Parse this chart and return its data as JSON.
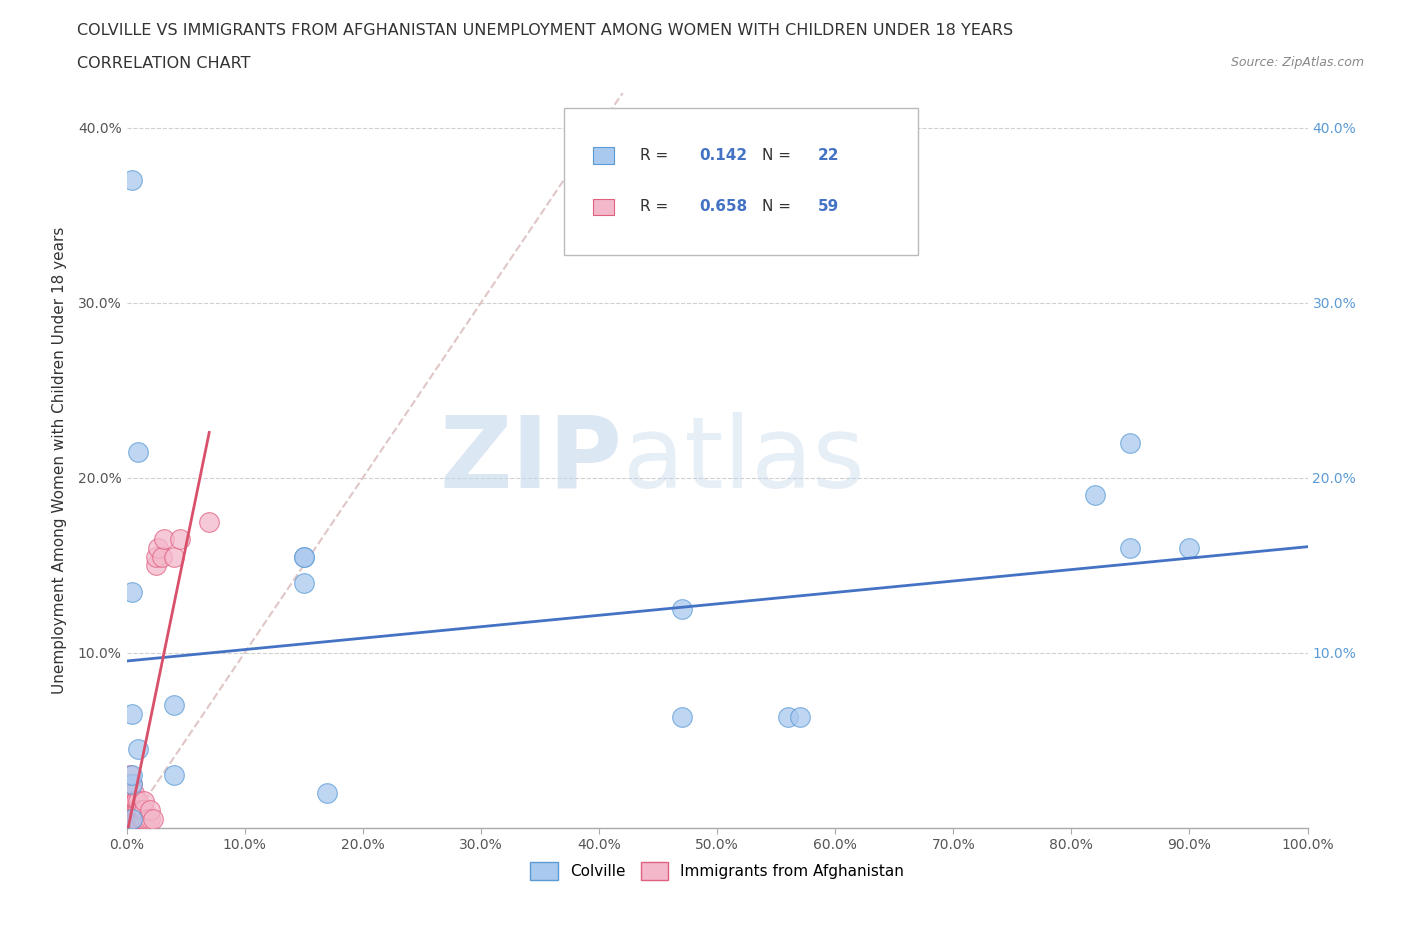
{
  "title_line1": "COLVILLE VS IMMIGRANTS FROM AFGHANISTAN UNEMPLOYMENT AMONG WOMEN WITH CHILDREN UNDER 18 YEARS",
  "title_line2": "CORRELATION CHART",
  "source_text": "Source: ZipAtlas.com",
  "ylabel": "Unemployment Among Women with Children Under 18 years",
  "xlim": [
    0,
    1.0
  ],
  "ylim": [
    0,
    0.42
  ],
  "xticks": [
    0.0,
    0.1,
    0.2,
    0.3,
    0.4,
    0.5,
    0.6,
    0.7,
    0.8,
    0.9,
    1.0
  ],
  "yticks": [
    0.0,
    0.1,
    0.2,
    0.3,
    0.4
  ],
  "xticklabels": [
    "0.0%",
    "10.0%",
    "20.0%",
    "30.0%",
    "40.0%",
    "50.0%",
    "60.0%",
    "70.0%",
    "80.0%",
    "90.0%",
    "100.0%"
  ],
  "yticklabels_left": [
    "",
    "10.0%",
    "20.0%",
    "30.0%",
    "40.0%"
  ],
  "yticklabels_right": [
    "",
    "10.0%",
    "20.0%",
    "30.0%",
    "40.0%"
  ],
  "colville_color": "#aac9ee",
  "afghanistan_color": "#f4b8cb",
  "colville_edge": "#5b9bd5",
  "afghanistan_edge": "#e06080",
  "trend_colville_color": "#4472c4",
  "trend_afghanistan_color": "#d9506a",
  "diagonal_color": "#d9b8b8",
  "R_colville": 0.142,
  "N_colville": 22,
  "R_afghanistan": 0.658,
  "N_afghanistan": 59,
  "legend_val_color": "#4472c4",
  "watermark_zip": "ZIP",
  "watermark_atlas": "atlas",
  "colville_x": [
    0.005,
    0.005,
    0.005,
    0.005,
    0.005,
    0.01,
    0.01,
    0.04,
    0.04,
    0.15,
    0.15,
    0.15,
    0.17,
    0.47,
    0.47,
    0.56,
    0.57,
    0.82,
    0.85,
    0.85,
    0.9,
    0.005
  ],
  "colville_y": [
    0.135,
    0.065,
    0.005,
    0.025,
    0.03,
    0.215,
    0.045,
    0.07,
    0.03,
    0.155,
    0.155,
    0.14,
    0.02,
    0.063,
    0.125,
    0.063,
    0.063,
    0.19,
    0.22,
    0.16,
    0.16,
    0.37
  ],
  "afghanistan_x": [
    0.001,
    0.001,
    0.001,
    0.001,
    0.001,
    0.002,
    0.002,
    0.002,
    0.002,
    0.002,
    0.003,
    0.003,
    0.003,
    0.003,
    0.003,
    0.003,
    0.004,
    0.004,
    0.004,
    0.004,
    0.005,
    0.005,
    0.005,
    0.005,
    0.005,
    0.006,
    0.006,
    0.006,
    0.006,
    0.007,
    0.007,
    0.007,
    0.008,
    0.008,
    0.008,
    0.009,
    0.009,
    0.01,
    0.01,
    0.01,
    0.012,
    0.012,
    0.013,
    0.013,
    0.015,
    0.015,
    0.015,
    0.017,
    0.02,
    0.02,
    0.022,
    0.025,
    0.025,
    0.027,
    0.03,
    0.032,
    0.04,
    0.045,
    0.07
  ],
  "afghanistan_y": [
    0.005,
    0.01,
    0.015,
    0.02,
    0.025,
    0.005,
    0.01,
    0.015,
    0.02,
    0.025,
    0.005,
    0.01,
    0.015,
    0.02,
    0.025,
    0.03,
    0.005,
    0.01,
    0.015,
    0.02,
    0.005,
    0.01,
    0.015,
    0.02,
    0.025,
    0.005,
    0.01,
    0.015,
    0.02,
    0.005,
    0.01,
    0.015,
    0.005,
    0.01,
    0.015,
    0.005,
    0.01,
    0.005,
    0.01,
    0.015,
    0.005,
    0.01,
    0.005,
    0.01,
    0.005,
    0.01,
    0.015,
    0.005,
    0.005,
    0.01,
    0.005,
    0.15,
    0.155,
    0.16,
    0.155,
    0.165,
    0.155,
    0.165,
    0.175
  ]
}
